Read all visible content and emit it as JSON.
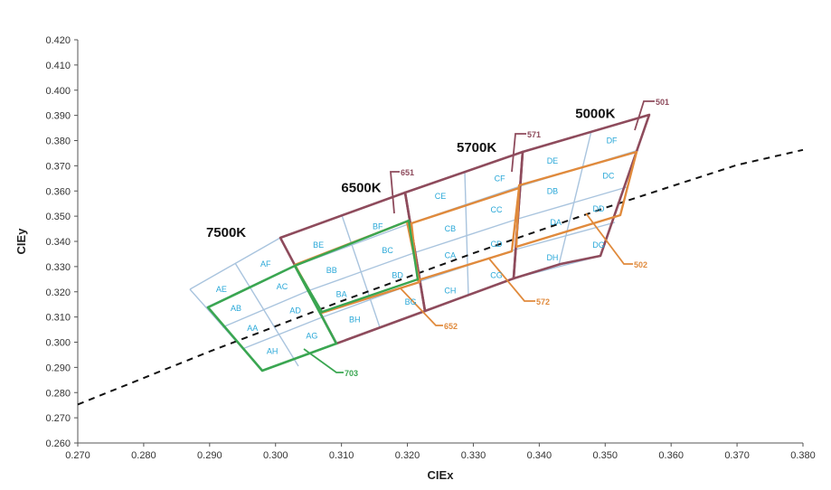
{
  "chart_data": {
    "type": "scatter",
    "title": "",
    "xlabel": "CIEx",
    "ylabel": "CIEy",
    "xlim": [
      0.27,
      0.38
    ],
    "ylim": [
      0.26,
      0.42
    ],
    "x_ticks": [
      "0.270",
      "0.280",
      "0.290",
      "0.300",
      "0.310",
      "0.320",
      "0.330",
      "0.340",
      "0.350",
      "0.360",
      "0.370",
      "0.380"
    ],
    "y_ticks": [
      "0.260",
      "0.270",
      "0.280",
      "0.290",
      "0.300",
      "0.310",
      "0.320",
      "0.330",
      "0.340",
      "0.350",
      "0.360",
      "0.370",
      "0.380",
      "0.390",
      "0.400",
      "0.410",
      "0.420"
    ],
    "grid": false,
    "colors": {
      "bin_grid": "#a9c4de",
      "maroon": "#8e4b5c",
      "orange": "#e08a3c",
      "green": "#3aa651",
      "bin_label": "#2aa8d8",
      "blackbody": "#111111"
    },
    "blackbody_line": [
      [
        0.27,
        0.2753
      ],
      [
        0.29,
        0.2963
      ],
      [
        0.31,
        0.3163
      ],
      [
        0.33,
        0.3353
      ],
      [
        0.35,
        0.3533
      ],
      [
        0.37,
        0.3703
      ],
      [
        0.38,
        0.3763
      ]
    ],
    "cct_labels": [
      {
        "text": "7500K",
        "x": 0.2925,
        "y": 0.3418
      },
      {
        "text": "6500K",
        "x": 0.313,
        "y": 0.3595
      },
      {
        "text": "5700K",
        "x": 0.3305,
        "y": 0.3755
      },
      {
        "text": "5000K",
        "x": 0.3485,
        "y": 0.389
      }
    ],
    "bins": [
      {
        "name": "AE",
        "x": 0.2918,
        "y": 0.321
      },
      {
        "name": "AF",
        "x": 0.2985,
        "y": 0.331
      },
      {
        "name": "AB",
        "x": 0.294,
        "y": 0.3135
      },
      {
        "name": "AC",
        "x": 0.301,
        "y": 0.322
      },
      {
        "name": "AA",
        "x": 0.2965,
        "y": 0.3055
      },
      {
        "name": "AD",
        "x": 0.303,
        "y": 0.3125
      },
      {
        "name": "AH",
        "x": 0.2995,
        "y": 0.2965
      },
      {
        "name": "AG",
        "x": 0.3055,
        "y": 0.3025
      },
      {
        "name": "BE",
        "x": 0.3065,
        "y": 0.3385
      },
      {
        "name": "BF",
        "x": 0.3155,
        "y": 0.346
      },
      {
        "name": "BB",
        "x": 0.3085,
        "y": 0.3285
      },
      {
        "name": "BC",
        "x": 0.317,
        "y": 0.3365
      },
      {
        "name": "BA",
        "x": 0.31,
        "y": 0.319
      },
      {
        "name": "BD",
        "x": 0.3185,
        "y": 0.3265
      },
      {
        "name": "BH",
        "x": 0.312,
        "y": 0.309
      },
      {
        "name": "BG",
        "x": 0.3205,
        "y": 0.316
      },
      {
        "name": "CE",
        "x": 0.325,
        "y": 0.358
      },
      {
        "name": "CF",
        "x": 0.334,
        "y": 0.365
      },
      {
        "name": "CB",
        "x": 0.3265,
        "y": 0.345
      },
      {
        "name": "CC",
        "x": 0.3335,
        "y": 0.3525
      },
      {
        "name": "CA",
        "x": 0.3265,
        "y": 0.3345
      },
      {
        "name": "CD",
        "x": 0.3335,
        "y": 0.339
      },
      {
        "name": "CH",
        "x": 0.3265,
        "y": 0.3205
      },
      {
        "name": "CG",
        "x": 0.3335,
        "y": 0.3265
      },
      {
        "name": "DE",
        "x": 0.342,
        "y": 0.372
      },
      {
        "name": "DF",
        "x": 0.351,
        "y": 0.38
      },
      {
        "name": "DB",
        "x": 0.342,
        "y": 0.36
      },
      {
        "name": "DC",
        "x": 0.3505,
        "y": 0.366
      },
      {
        "name": "DA",
        "x": 0.3425,
        "y": 0.3475
      },
      {
        "name": "DD",
        "x": 0.349,
        "y": 0.353
      },
      {
        "name": "DH",
        "x": 0.342,
        "y": 0.3335
      },
      {
        "name": "DG",
        "x": 0.349,
        "y": 0.3385
      }
    ],
    "callouts": [
      {
        "text": "501",
        "color": "maroon"
      },
      {
        "text": "571",
        "color": "maroon"
      },
      {
        "text": "651",
        "color": "maroon"
      },
      {
        "text": "502",
        "color": "orange"
      },
      {
        "text": "572",
        "color": "orange"
      },
      {
        "text": "652",
        "color": "orange"
      },
      {
        "text": "703",
        "color": "green"
      }
    ]
  }
}
